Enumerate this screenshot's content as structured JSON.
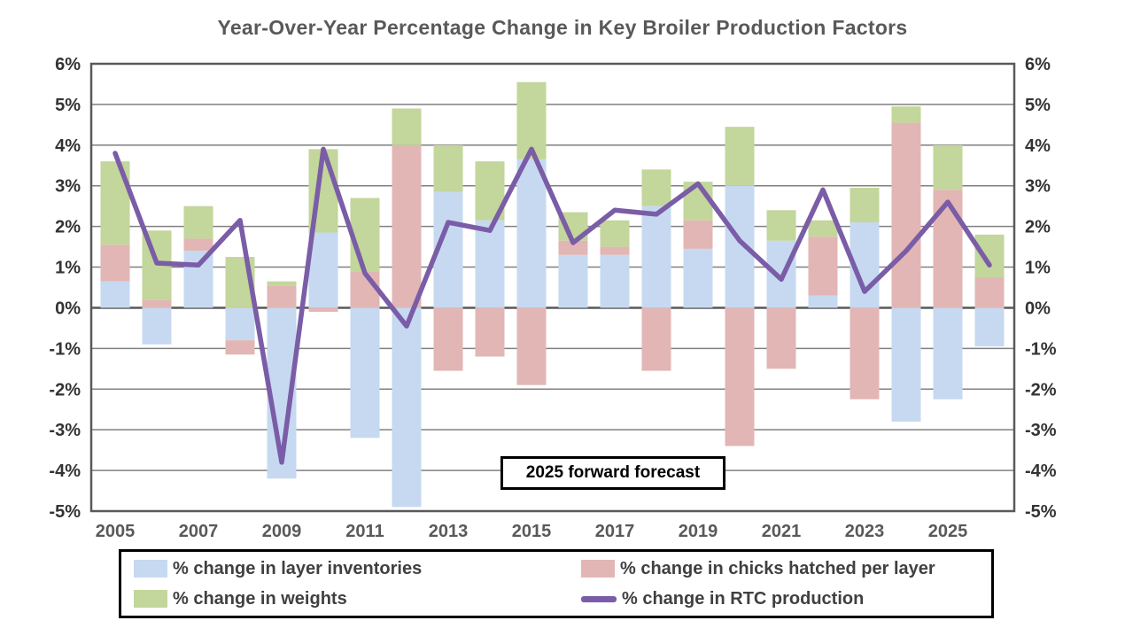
{
  "title": "Year-Over-Year Percentage Change in Key Broiler Production Factors",
  "annotation": "2025 forward forecast",
  "colors": {
    "layer_inventories": "#c6d9f1",
    "chicks_hatched": "#e2b6b5",
    "weights": "#c3d69b",
    "rtc_line": "#7a5da6",
    "gridline": "#808080",
    "axis_border": "#595959",
    "zero_line": "#595959",
    "title_text": "#595959",
    "tick_text": "#333333",
    "x_tick_text": "#595959"
  },
  "legend": {
    "layer_inventories": "% change in layer inventories",
    "chicks_hatched": "% change in chicks hatched per layer",
    "weights": "% change in weights",
    "rtc": "% change in RTC production"
  },
  "chart_data": {
    "type": "bar",
    "subtype": "stacked-bars-with-line-overlay",
    "x": [
      2005,
      2006,
      2007,
      2008,
      2009,
      2010,
      2011,
      2012,
      2013,
      2014,
      2015,
      2016,
      2017,
      2018,
      2019,
      2020,
      2021,
      2022,
      2023,
      2024,
      2025,
      2026
    ],
    "x_tick_labels": [
      "2005",
      "2007",
      "2009",
      "2011",
      "2013",
      "2015",
      "2017",
      "2019",
      "2021",
      "2023",
      "2025"
    ],
    "x_tick_years": [
      2005,
      2007,
      2009,
      2011,
      2013,
      2015,
      2017,
      2019,
      2021,
      2023,
      2025
    ],
    "y_tick_labels": [
      "6%",
      "5%",
      "4%",
      "3%",
      "2%",
      "1%",
      "0%",
      "-1%",
      "-2%",
      "-3%",
      "-4%",
      "-5%"
    ],
    "y_tick_values": [
      6,
      5,
      4,
      3,
      2,
      1,
      0,
      -1,
      -2,
      -3,
      -4,
      -5
    ],
    "ylim": [
      -5,
      6
    ],
    "grid": "horizontal",
    "legend_position": "bottom",
    "dual_axis": true,
    "series": [
      {
        "name": "% change in layer inventories",
        "type": "bar",
        "color_key": "layer_inventories",
        "values": [
          0.65,
          -0.9,
          1.4,
          -0.8,
          -4.2,
          1.85,
          -3.2,
          -4.9,
          2.85,
          2.15,
          3.65,
          1.3,
          1.3,
          2.5,
          1.45,
          3.0,
          1.65,
          0.3,
          2.1,
          -2.8,
          -2.25,
          -0.95
        ]
      },
      {
        "name": "% change in chicks hatched per layer",
        "type": "bar",
        "color_key": "chicks_hatched",
        "values": [
          0.9,
          0.2,
          0.3,
          -0.35,
          0.55,
          -0.1,
          0.9,
          4.0,
          -1.55,
          -1.2,
          -1.9,
          0.35,
          0.2,
          -1.55,
          0.7,
          -3.4,
          -1.5,
          1.45,
          -2.25,
          4.55,
          2.9,
          0.75
        ]
      },
      {
        "name": "% change in weights",
        "type": "bar",
        "color_key": "weights",
        "values": [
          2.05,
          1.7,
          0.8,
          1.25,
          0.1,
          2.05,
          1.8,
          0.9,
          1.15,
          1.45,
          1.9,
          0.7,
          0.65,
          0.9,
          0.95,
          1.45,
          0.75,
          0.4,
          0.85,
          0.4,
          1.1,
          1.05
        ]
      },
      {
        "name": "% change in RTC production",
        "type": "line",
        "color_key": "rtc_line",
        "values": [
          3.8,
          1.1,
          1.05,
          2.15,
          -3.8,
          3.9,
          0.85,
          -0.45,
          2.1,
          1.9,
          3.9,
          1.6,
          2.4,
          2.3,
          3.05,
          1.65,
          0.7,
          2.9,
          0.4,
          1.4,
          2.6,
          1.05
        ]
      }
    ]
  }
}
